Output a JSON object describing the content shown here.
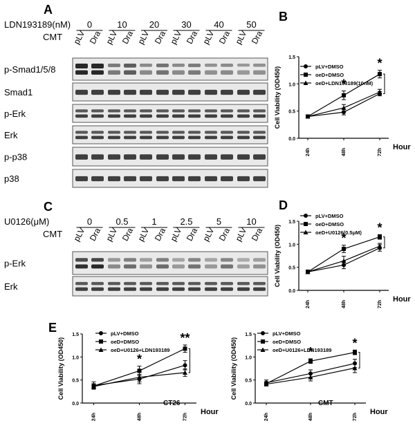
{
  "panels": {
    "A": {
      "letter": "A",
      "rows": [
        {
          "label": "LDN193189(nM)",
          "values": [
            "0",
            "10",
            "20",
            "30",
            "40",
            "50"
          ]
        },
        {
          "label": "CMT",
          "lanes": [
            "pLV",
            "Dra",
            "pLV",
            "Dra",
            "pLV",
            "Dra",
            "pLV",
            "Dra",
            "pLV",
            "Dra",
            "pLV",
            "Dra"
          ]
        }
      ],
      "blots": [
        "p-Smad1/5/8",
        "Smad1",
        "p-Erk",
        "Erk",
        "p-p38",
        "p38"
      ]
    },
    "C": {
      "letter": "C",
      "rows": [
        {
          "label": "U0126(μM)",
          "values": [
            "0",
            "0.5",
            "1",
            "2.5",
            "5",
            "10"
          ]
        },
        {
          "label": "CMT",
          "lanes": [
            "pLV",
            "Dra",
            "pLV",
            "Dra",
            "pLV",
            "Dra",
            "pLV",
            "Dra",
            "pLV",
            "Dra",
            "pLV",
            "Dra"
          ]
        }
      ],
      "blots": [
        "p-Erk",
        "Erk"
      ]
    }
  },
  "chart_data": [
    {
      "panel": "B",
      "type": "line",
      "categories": [
        "24h",
        "48h",
        "72h"
      ],
      "xlabel": "Hour",
      "ylabel": "Cell Viability (OD450)",
      "ylim": [
        0,
        1.5
      ],
      "yticks": [
        "0.0",
        "0.5",
        "1.0",
        "1.5"
      ],
      "series": [
        {
          "name": "pLV+DMSO",
          "marker": "circle",
          "values": [
            0.4,
            0.48,
            0.82
          ],
          "errors": [
            0.03,
            0.05,
            0.04
          ]
        },
        {
          "name": "oeD+DMSO",
          "marker": "square",
          "values": [
            0.4,
            0.79,
            1.18
          ],
          "errors": [
            0.03,
            0.08,
            0.07
          ]
        },
        {
          "name": "oeD+LDN193189(10nM)",
          "marker": "triangle",
          "values": [
            0.4,
            0.56,
            0.85
          ],
          "errors": [
            0.03,
            0.06,
            0.05
          ]
        }
      ],
      "annotations": [
        "*",
        "*"
      ]
    },
    {
      "panel": "D",
      "type": "line",
      "categories": [
        "24h",
        "48h",
        "72h"
      ],
      "xlabel": "Hour",
      "ylabel": "Cell Viability (OD450)",
      "ylim": [
        0,
        1.5
      ],
      "yticks": [
        "0.0",
        "0.5",
        "1.0",
        "1.5"
      ],
      "series": [
        {
          "name": "pLV+DMSO",
          "marker": "circle",
          "values": [
            0.4,
            0.55,
            0.92
          ],
          "errors": [
            0.04,
            0.08,
            0.07
          ]
        },
        {
          "name": "oeD+DMSO",
          "marker": "square",
          "values": [
            0.4,
            0.9,
            1.16
          ],
          "errors": [
            0.04,
            0.08,
            0.05
          ]
        },
        {
          "name": "oeD+U0126(0.5μM)",
          "marker": "triangle",
          "values": [
            0.4,
            0.64,
            0.96
          ],
          "errors": [
            0.04,
            0.1,
            0.06
          ]
        }
      ],
      "annotations": [
        "*",
        "*"
      ]
    },
    {
      "panel": "E",
      "label": "CT26",
      "type": "line",
      "categories": [
        "24h",
        "48h",
        "72h"
      ],
      "xlabel": "Hour",
      "ylabel": "Cell Viability (OD450)",
      "ylim": [
        0,
        1.5
      ],
      "yticks": [
        "0.0",
        "0.5",
        "1.0",
        "1.5"
      ],
      "series": [
        {
          "name": "pLV+DMSO",
          "marker": "circle",
          "values": [
            0.38,
            0.52,
            0.82
          ],
          "errors": [
            0.08,
            0.1,
            0.1
          ]
        },
        {
          "name": "oeD+DMSO",
          "marker": "square",
          "values": [
            0.37,
            0.7,
            1.18
          ],
          "errors": [
            0.05,
            0.1,
            0.08
          ]
        },
        {
          "name": "oeD+U0126+LDN193189",
          "marker": "triangle",
          "values": [
            0.36,
            0.56,
            0.66
          ],
          "errors": [
            0.05,
            0.1,
            0.08
          ]
        }
      ],
      "annotations": [
        "*",
        "**"
      ]
    },
    {
      "panel": "E",
      "label": "CMT",
      "type": "line",
      "categories": [
        "24h",
        "48h",
        "72h"
      ],
      "xlabel": "Hour",
      "ylabel": "Cell Viability (OD450)",
      "ylim": [
        0,
        1.5
      ],
      "yticks": [
        "0.0",
        "0.5",
        "1.0",
        "1.5"
      ],
      "series": [
        {
          "name": "pLV+DMSO",
          "marker": "circle",
          "values": [
            0.44,
            0.64,
            0.86
          ],
          "errors": [
            0.06,
            0.08,
            0.09
          ]
        },
        {
          "name": "oeD+DMSO",
          "marker": "square",
          "values": [
            0.42,
            0.91,
            1.1
          ],
          "errors": [
            0.04,
            0.05,
            0.05
          ]
        },
        {
          "name": "oeD+U0126+LDN193189",
          "marker": "triangle",
          "values": [
            0.41,
            0.56,
            0.76
          ],
          "errors": [
            0.04,
            0.08,
            0.1
          ]
        }
      ],
      "annotations": [
        "*",
        "*"
      ]
    }
  ],
  "panel_letters": {
    "B": "B",
    "D": "D",
    "E": "E"
  }
}
